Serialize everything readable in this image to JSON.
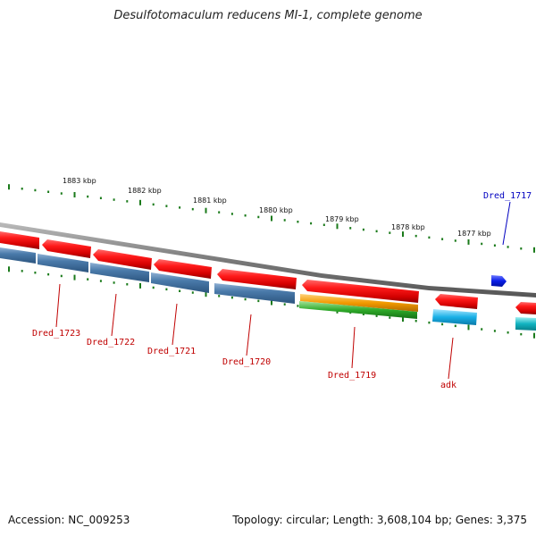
{
  "title": "Desulfotomaculum reducens MI-1, complete genome",
  "footer": {
    "accession": "Accession: NC_009253",
    "summary": "Topology: circular; Length: 3,608,104 bp; Genes: 3,375"
  },
  "colors": {
    "cds_forward": "#e00000",
    "cds_reverse_track": "#3f6f9c",
    "rrna_orange": "#f29a00",
    "rrna_green": "#2faa2a",
    "cyan_track": "#19b0e6",
    "teal_track": "#11b3c0",
    "small_feature": "#0a1ee8",
    "ticks": "#1a7a1a",
    "backbone": "#888888",
    "label_red": "#c00000",
    "label_blue": "#0000c0"
  },
  "kbp_labels": [
    "1883 kbp",
    "1882 kbp",
    "1881 kbp",
    "1880 kbp",
    "1879 kbp",
    "1878 kbp",
    "1877 kbp"
  ],
  "gene_labels": [
    {
      "text": "Dred_1723",
      "color": "red"
    },
    {
      "text": "Dred_1722",
      "color": "red"
    },
    {
      "text": "Dred_1721",
      "color": "red"
    },
    {
      "text": "Dred_1720",
      "color": "red"
    },
    {
      "text": "Dred_1719",
      "color": "red"
    },
    {
      "text": "adk",
      "color": "red"
    },
    {
      "text": "Dred_1717",
      "color": "blue"
    }
  ]
}
